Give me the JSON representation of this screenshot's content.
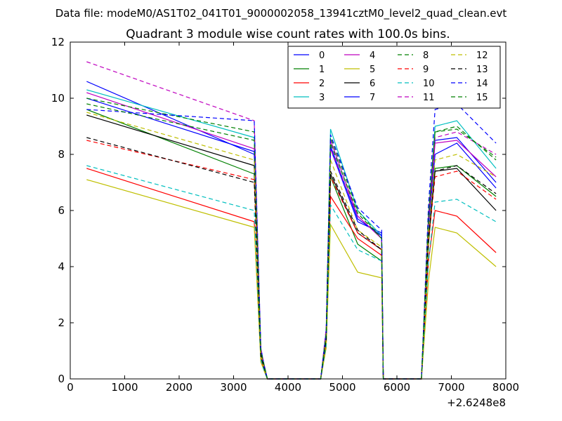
{
  "header": {
    "suptitle": "Data file: modeM0/AS1T02_041T01_9000002058_13941cztM0_level2_quad_clean.evt"
  },
  "chart_data": {
    "type": "line",
    "title": "Quadrant 3 module wise count rates with 100.0s bins.",
    "xlabel": "",
    "ylabel": "",
    "x_offset_label": "+2.6248e8",
    "xlim": [
      0,
      8000
    ],
    "ylim": [
      0,
      12
    ],
    "xticks": [
      "0",
      "1000",
      "2000",
      "3000",
      "4000",
      "5000",
      "6000",
      "7000",
      "8000"
    ],
    "yticks": [
      "0",
      "2",
      "4",
      "6",
      "8",
      "10",
      "12"
    ],
    "legend_position": "top-right",
    "x": [
      300,
      3380,
      3500,
      3560,
      3620,
      4600,
      4700,
      4780,
      5280,
      5720,
      5750,
      6450,
      6580,
      6700,
      7100,
      7820
    ],
    "series": [
      {
        "name": "0",
        "color": "#0000ff",
        "dash": "solid",
        "values": [
          10.6,
          8.0,
          1.0,
          0.5,
          0.0,
          0.0,
          1.5,
          8.2,
          5.6,
          5.2,
          0.0,
          0.0,
          5.5,
          8.5,
          8.6,
          7.0
        ]
      },
      {
        "name": "1",
        "color": "#008000",
        "dash": "solid",
        "values": [
          9.6,
          7.3,
          0.9,
          0.4,
          0.0,
          0.0,
          1.5,
          7.2,
          4.8,
          4.2,
          0.0,
          0.0,
          4.8,
          7.5,
          7.6,
          6.5
        ]
      },
      {
        "name": "2",
        "color": "#ff0000",
        "dash": "solid",
        "values": [
          7.5,
          5.6,
          0.7,
          0.3,
          0.0,
          0.0,
          1.2,
          6.5,
          5.0,
          4.4,
          0.0,
          0.0,
          4.2,
          6.0,
          5.8,
          4.5
        ]
      },
      {
        "name": "3",
        "color": "#00bfbf",
        "dash": "solid",
        "values": [
          10.3,
          8.6,
          1.0,
          0.5,
          0.0,
          0.0,
          1.7,
          8.9,
          6.0,
          5.1,
          0.0,
          0.0,
          5.8,
          9.0,
          9.2,
          7.5
        ]
      },
      {
        "name": "4",
        "color": "#bf00bf",
        "dash": "solid",
        "values": [
          10.2,
          8.2,
          1.0,
          0.5,
          0.0,
          0.0,
          1.6,
          8.5,
          5.8,
          5.0,
          0.0,
          0.0,
          5.6,
          8.4,
          8.5,
          7.2
        ]
      },
      {
        "name": "5",
        "color": "#bfbf00",
        "dash": "solid",
        "values": [
          7.1,
          5.4,
          0.6,
          0.3,
          0.0,
          0.0,
          1.1,
          5.5,
          3.8,
          3.6,
          0.0,
          0.0,
          3.5,
          5.4,
          5.2,
          4.0
        ]
      },
      {
        "name": "6",
        "color": "#000000",
        "dash": "solid",
        "values": [
          9.4,
          7.6,
          0.9,
          0.4,
          0.0,
          0.0,
          1.5,
          7.3,
          5.2,
          4.6,
          0.0,
          0.0,
          5.0,
          7.4,
          7.5,
          6.0
        ]
      },
      {
        "name": "7",
        "color": "#0000ff",
        "dash": "solid",
        "values": [
          10.0,
          8.1,
          1.0,
          0.5,
          0.0,
          0.0,
          1.6,
          8.3,
          5.7,
          5.1,
          0.0,
          0.0,
          5.4,
          8.0,
          8.4,
          6.8
        ]
      },
      {
        "name": "8",
        "color": "#008000",
        "dash": "dashed",
        "values": [
          10.0,
          8.8,
          1.0,
          0.5,
          0.0,
          0.0,
          1.6,
          8.6,
          6.0,
          5.0,
          0.0,
          0.0,
          5.9,
          8.8,
          9.0,
          7.8
        ]
      },
      {
        "name": "9",
        "color": "#ff0000",
        "dash": "dashed",
        "values": [
          8.5,
          7.1,
          0.8,
          0.4,
          0.0,
          0.0,
          1.4,
          7.2,
          5.2,
          4.6,
          0.0,
          0.0,
          4.9,
          7.2,
          7.4,
          6.4
        ]
      },
      {
        "name": "10",
        "color": "#00bfbf",
        "dash": "dashed",
        "values": [
          7.6,
          6.0,
          0.7,
          0.3,
          0.0,
          0.0,
          1.2,
          6.2,
          4.6,
          4.2,
          0.0,
          0.0,
          4.2,
          6.3,
          6.4,
          5.6
        ]
      },
      {
        "name": "11",
        "color": "#bf00bf",
        "dash": "dashed",
        "values": [
          11.3,
          9.2,
          1.1,
          0.5,
          0.0,
          0.0,
          1.8,
          8.2,
          5.8,
          5.0,
          0.0,
          0.0,
          5.8,
          8.6,
          8.8,
          8.0
        ]
      },
      {
        "name": "12",
        "color": "#bfbf00",
        "dash": "dashed",
        "values": [
          9.5,
          7.8,
          0.9,
          0.4,
          0.0,
          0.0,
          1.5,
          7.8,
          5.3,
          4.7,
          0.0,
          0.0,
          5.2,
          7.8,
          8.0,
          7.2
        ]
      },
      {
        "name": "13",
        "color": "#000000",
        "dash": "dashed",
        "values": [
          8.6,
          7.0,
          0.8,
          0.4,
          0.0,
          0.0,
          1.4,
          7.4,
          5.3,
          4.6,
          0.0,
          0.0,
          5.0,
          7.4,
          7.6,
          6.6
        ]
      },
      {
        "name": "14",
        "color": "#0000ff",
        "dash": "dashed",
        "values": [
          9.6,
          9.2,
          1.1,
          0.5,
          0.0,
          0.0,
          1.7,
          8.7,
          6.1,
          5.3,
          0.0,
          0.0,
          6.2,
          9.6,
          9.8,
          8.4
        ]
      },
      {
        "name": "15",
        "color": "#008000",
        "dash": "dashed",
        "values": [
          9.8,
          8.5,
          1.0,
          0.5,
          0.0,
          0.0,
          1.6,
          8.4,
          5.9,
          5.0,
          0.0,
          0.0,
          5.8,
          8.8,
          8.9,
          7.9
        ]
      }
    ]
  }
}
